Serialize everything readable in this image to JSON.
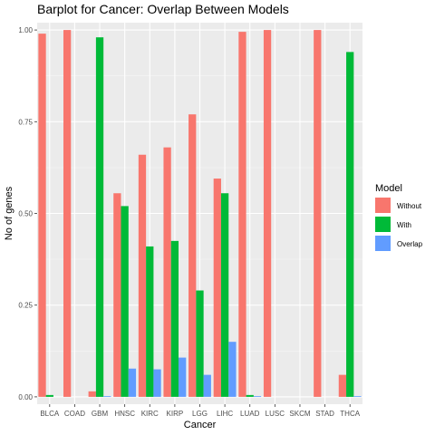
{
  "chart_data": {
    "type": "bar",
    "title": "Barplot for Cancer: Overlap Between Models",
    "xlabel": "Cancer",
    "ylabel": "No of genes",
    "ylim": [
      -0.02,
      1.02
    ],
    "yticks": [
      0.0,
      0.25,
      0.5,
      0.75,
      1.0
    ],
    "ytick_labels": [
      "0.00",
      "0.25",
      "0.50",
      "0.75",
      "1.00"
    ],
    "grid": true,
    "legend": {
      "title": "Model",
      "position": "right"
    },
    "categories": [
      "BLCA",
      "COAD",
      "GBM",
      "HNSC",
      "KIRC",
      "KIRP",
      "LGG",
      "LIHC",
      "LUAD",
      "LUSC",
      "SKCM",
      "STAD",
      "THCA"
    ],
    "series": [
      {
        "name": "Without",
        "color": "#F8766D",
        "values": [
          0.99,
          1.0,
          0.015,
          0.555,
          0.66,
          0.68,
          0.77,
          0.595,
          0.995,
          1.0,
          0.0,
          1.0,
          0.06
        ]
      },
      {
        "name": "With",
        "color": "#00BA38",
        "values": [
          0.005,
          0.0,
          0.98,
          0.52,
          0.41,
          0.425,
          0.29,
          0.555,
          0.005,
          0.0,
          0.0,
          0.0,
          0.94
        ]
      },
      {
        "name": "Overlap",
        "color": "#619CFF",
        "values": [
          0.0,
          0.0,
          0.002,
          0.077,
          0.075,
          0.107,
          0.06,
          0.15,
          0.002,
          0.0,
          0.0,
          0.0,
          0.002
        ]
      }
    ]
  }
}
